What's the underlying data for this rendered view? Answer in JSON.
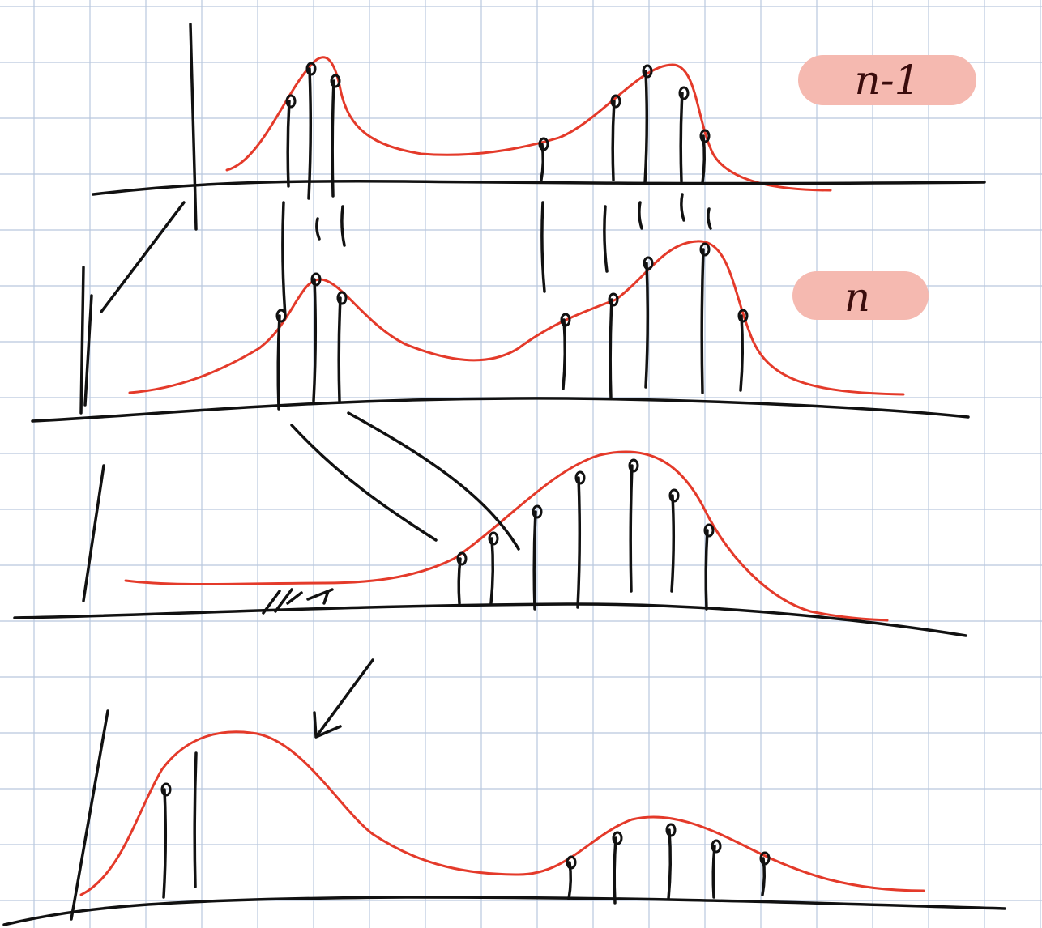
{
  "labels": {
    "upper": "n-1",
    "lower": "n"
  }
}
